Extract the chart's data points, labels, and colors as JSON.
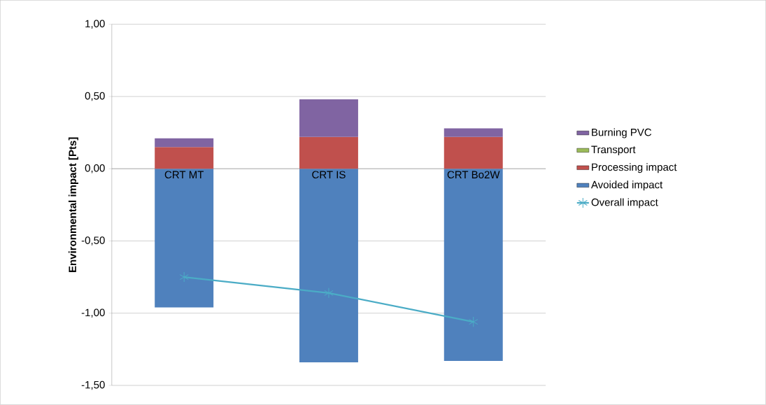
{
  "chart_data": {
    "type": "bar",
    "stacked": true,
    "ylabel": "Environmental impact [Pts]",
    "categories": [
      "CRT MT",
      "CRT IS",
      "CRT Bo2W"
    ],
    "series": [
      {
        "name": "Avoided impact",
        "color": "#4f81bd",
        "values": [
          -0.96,
          -1.34,
          -1.33
        ]
      },
      {
        "name": "Processing impact",
        "color": "#c0504d",
        "values": [
          0.15,
          0.22,
          0.22
        ]
      },
      {
        "name": "Transport",
        "color": "#9bbb59",
        "values": [
          0,
          0,
          0
        ]
      },
      {
        "name": "Burning PVC",
        "color": "#8064a2",
        "values": [
          0.06,
          0.26,
          0.06
        ]
      },
      {
        "name": "Overall impact",
        "type": "line",
        "marker": "cross",
        "color": "#4bacc6",
        "values": [
          -0.75,
          -0.86,
          -1.06
        ]
      }
    ],
    "ylim": [
      -1.5,
      1.0
    ],
    "yticks": [
      {
        "value": -1.5,
        "label": "-1,50"
      },
      {
        "value": -1.0,
        "label": "-1,00"
      },
      {
        "value": -0.5,
        "label": "-0,50"
      },
      {
        "value": 0,
        "label": "0,00"
      },
      {
        "value": 0.5,
        "label": "0,50"
      },
      {
        "value": 1.0,
        "label": "1,00"
      }
    ],
    "grid": "y",
    "legend": "right"
  }
}
